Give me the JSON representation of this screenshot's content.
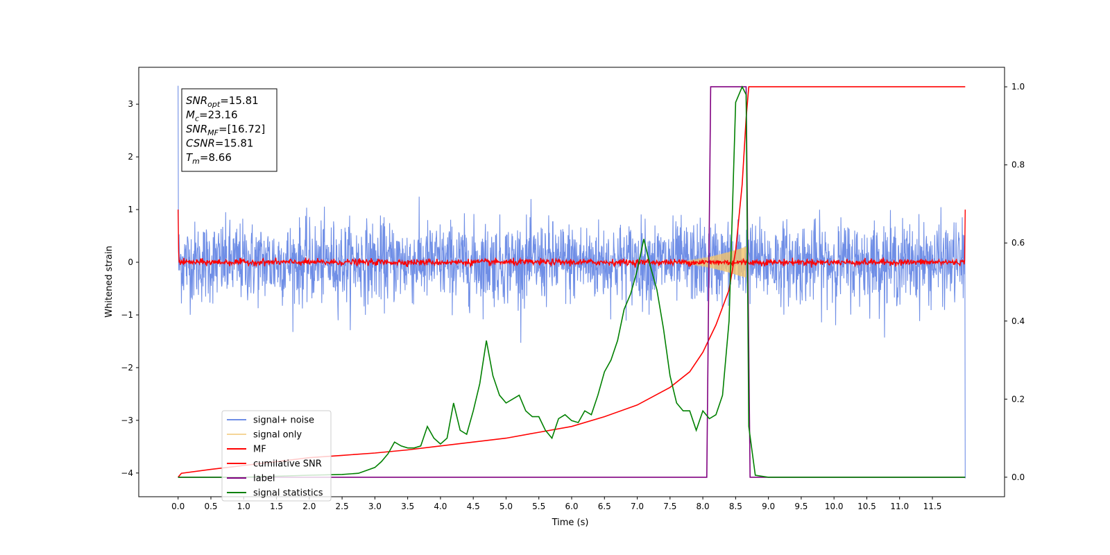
{
  "chart_data": {
    "type": "line",
    "xlabel": "Time (s)",
    "ylabel": "Whitened strain",
    "xlim": [
      -0.6,
      12.6
    ],
    "ylim": [
      -4.45,
      3.7
    ],
    "y2lim": [
      -0.05,
      1.05
    ],
    "x_ticks": [
      "0.0",
      "0.5",
      "1.0",
      "1.5",
      "2.0",
      "2.5",
      "3.0",
      "3.5",
      "4.0",
      "4.5",
      "5.0",
      "5.5",
      "6.0",
      "6.5",
      "7.0",
      "7.5",
      "8.0",
      "8.5",
      "9.0",
      "9.5",
      "10.0",
      "10.5",
      "11.0",
      "11.5"
    ],
    "y_ticks": [
      "3",
      "2",
      "1",
      "0",
      "−1",
      "−2",
      "−3",
      "−4"
    ],
    "y2_ticks": [
      "1.0",
      "0.8",
      "0.6",
      "0.4",
      "0.2",
      "0.0"
    ],
    "grid": false,
    "legend_position": "lower-left",
    "annotation_box": [
      {
        "base": "SNR",
        "sub": "opt",
        "value": "=15.81"
      },
      {
        "base": "M",
        "sub": "c",
        "value": "=23.16"
      },
      {
        "base": "SNR",
        "sub": "MF",
        "value": "=[16.72]"
      },
      {
        "base": "CSNR",
        "sub": "",
        "value": "=15.81"
      },
      {
        "base": "T",
        "sub": "m",
        "value": "=8.66"
      }
    ],
    "series": [
      {
        "name": "signal+ noise",
        "color": "#6f8ee6",
        "axis": "left",
        "kind": "noise",
        "x_range": [
          0,
          12
        ],
        "amplitude_std": 0.38,
        "spikes_max": 3.35,
        "spikes_min": -4.1
      },
      {
        "name": "signal only",
        "color": "#f2c46d",
        "axis": "left",
        "kind": "chirp",
        "start": 7.5,
        "merger": 8.66,
        "peak_amplitude": 0.3
      },
      {
        "name": "MF",
        "color": "#ff0000",
        "axis": "left",
        "kind": "mf_noise",
        "x_range": [
          0,
          12
        ],
        "edge_value": 1.0,
        "amplitude_std": 0.03
      },
      {
        "name": "cumilative SNR",
        "color": "#ff0000",
        "axis": "right",
        "x": [
          0,
          0.05,
          0.5,
          1,
          1.5,
          2,
          2.5,
          3,
          3.5,
          4,
          4.5,
          5,
          5.5,
          6,
          6.5,
          7,
          7.5,
          7.8,
          8,
          8.2,
          8.4,
          8.5,
          8.6,
          8.66,
          8.7,
          11.5,
          12
        ],
        "y": [
          0.0,
          0.01,
          0.02,
          0.03,
          0.04,
          0.05,
          0.056,
          0.062,
          0.07,
          0.08,
          0.09,
          0.1,
          0.115,
          0.13,
          0.155,
          0.185,
          0.23,
          0.27,
          0.32,
          0.39,
          0.48,
          0.58,
          0.75,
          0.92,
          1.0,
          1.0,
          1.0
        ]
      },
      {
        "name": "label",
        "color": "#800080",
        "axis": "right",
        "x": [
          0,
          8.06,
          8.12,
          8.66,
          8.72,
          12
        ],
        "y": [
          0,
          0,
          1,
          1,
          0,
          0
        ]
      },
      {
        "name": "signal statistics",
        "color": "#008000",
        "axis": "right",
        "x": [
          0,
          1,
          2,
          2.5,
          2.75,
          3,
          3.1,
          3.2,
          3.3,
          3.4,
          3.5,
          3.6,
          3.7,
          3.8,
          3.9,
          4.0,
          4.1,
          4.2,
          4.3,
          4.4,
          4.5,
          4.6,
          4.7,
          4.8,
          4.9,
          5.0,
          5.1,
          5.2,
          5.3,
          5.4,
          5.5,
          5.6,
          5.7,
          5.8,
          5.9,
          6.0,
          6.1,
          6.2,
          6.3,
          6.4,
          6.5,
          6.6,
          6.7,
          6.8,
          6.9,
          7.0,
          7.1,
          7.2,
          7.3,
          7.4,
          7.5,
          7.6,
          7.7,
          7.8,
          7.9,
          8.0,
          8.1,
          8.2,
          8.3,
          8.4,
          8.5,
          8.6,
          8.66,
          8.7,
          8.8,
          9,
          12
        ],
        "y": [
          0.0,
          0.0,
          0.005,
          0.007,
          0.01,
          0.025,
          0.04,
          0.06,
          0.09,
          0.08,
          0.075,
          0.075,
          0.08,
          0.13,
          0.1,
          0.085,
          0.1,
          0.19,
          0.12,
          0.11,
          0.17,
          0.24,
          0.35,
          0.26,
          0.21,
          0.19,
          0.2,
          0.21,
          0.17,
          0.155,
          0.155,
          0.12,
          0.1,
          0.15,
          0.16,
          0.145,
          0.14,
          0.17,
          0.16,
          0.21,
          0.27,
          0.3,
          0.35,
          0.43,
          0.47,
          0.53,
          0.61,
          0.54,
          0.48,
          0.38,
          0.26,
          0.19,
          0.17,
          0.17,
          0.12,
          0.17,
          0.15,
          0.16,
          0.21,
          0.4,
          0.96,
          1.0,
          0.98,
          0.13,
          0.005,
          0.0,
          0.0
        ]
      }
    ]
  }
}
